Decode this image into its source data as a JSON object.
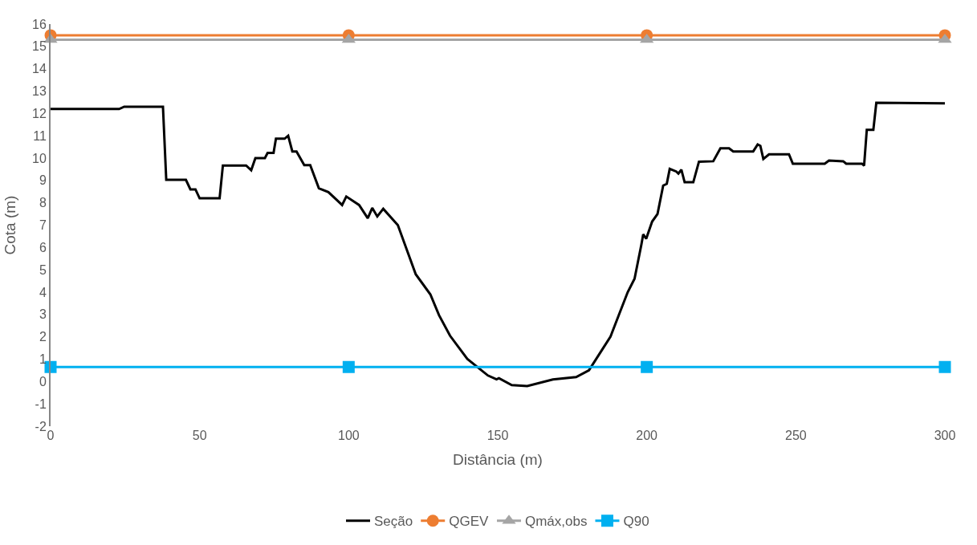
{
  "chart_data": {
    "type": "line",
    "xlabel": "Distância (m)",
    "ylabel": "Cota (m)",
    "xlim": [
      0,
      300
    ],
    "xticks": [
      0,
      50,
      100,
      150,
      200,
      250,
      300
    ],
    "ylim": [
      -2,
      16
    ],
    "yticks": [
      -2,
      -1,
      0,
      1,
      2,
      3,
      4,
      5,
      6,
      7,
      8,
      9,
      10,
      11,
      12,
      13,
      14,
      15,
      16
    ],
    "grid": false,
    "legend": "bottom",
    "line_style": "solid",
    "series": [
      {
        "name": "Seção",
        "color": "#000000",
        "marker": "none",
        "x": [
          0,
          23,
          24.7,
          37.7,
          38.8,
          45.4,
          46.9,
          48.6,
          50,
          56.7,
          57.8,
          65.6,
          67.3,
          68.7,
          71.9,
          72.8,
          74.8,
          75.6,
          78.5,
          79.7,
          81.1,
          82.5,
          85.1,
          87.1,
          90,
          93.2,
          97.8,
          99.2,
          103.5,
          106.4,
          107.9,
          109.6,
          111.6,
          116.5,
          122.5,
          127.4,
          130.3,
          134,
          139.8,
          146.7,
          149.6,
          150.4,
          154.7,
          159.9,
          168.5,
          176.3,
          180.6,
          184.9,
          187.8,
          190.7,
          193.6,
          195.9,
          198.2,
          198.8,
          199.8,
          201.8,
          203.6,
          205.5,
          206.7,
          207.7,
          209.9,
          210.6,
          211.6,
          212.7,
          215.6,
          217.5,
          222.3,
          224.7,
          227.6,
          229,
          235.7,
          237.2,
          238.1,
          239.1,
          241,
          247.7,
          249,
          259.7,
          261.1,
          265.9,
          266.9,
          272.2,
          272.9,
          273.8,
          276,
          277,
          300
        ],
        "values": [
          12.2,
          12.2,
          12.3,
          12.3,
          9.03,
          9.03,
          8.6,
          8.6,
          8.2,
          8.2,
          9.67,
          9.67,
          9.46,
          10.0,
          10.0,
          10.23,
          10.23,
          10.87,
          10.87,
          11.0,
          10.3,
          10.3,
          9.69,
          9.69,
          8.65,
          8.48,
          7.9,
          8.28,
          7.9,
          7.31,
          7.77,
          7.39,
          7.73,
          7.0,
          4.8,
          3.9,
          2.97,
          2.05,
          1.01,
          0.27,
          0.1,
          0.15,
          -0.16,
          -0.2,
          0.09,
          0.2,
          0.5,
          1.4,
          2.0,
          3.0,
          4.0,
          4.6,
          6.14,
          6.59,
          6.39,
          7.16,
          7.5,
          8.77,
          8.85,
          9.52,
          9.4,
          9.31,
          9.48,
          8.92,
          8.92,
          9.84,
          9.86,
          10.44,
          10.44,
          10.3,
          10.3,
          10.61,
          10.55,
          9.96,
          10.17,
          10.17,
          9.75,
          9.75,
          9.89,
          9.86,
          9.75,
          9.75,
          9.66,
          11.27,
          11.27,
          12.48,
          12.45
        ]
      },
      {
        "name": "QGEV",
        "color": "#ed7d31",
        "marker": "circle",
        "x": [
          0,
          100,
          200,
          300
        ],
        "values": [
          15.5,
          15.5,
          15.5,
          15.5
        ]
      },
      {
        "name": "Qmáx,obs",
        "color": "#a5a5a5",
        "marker": "triangle",
        "x": [
          0,
          100,
          200,
          300
        ],
        "values": [
          15.3,
          15.3,
          15.3,
          15.3
        ]
      },
      {
        "name": "Q90",
        "color": "#00b0f0",
        "marker": "square",
        "x": [
          0,
          100,
          200,
          300
        ],
        "values": [
          0.65,
          0.65,
          0.65,
          0.65
        ]
      }
    ]
  }
}
